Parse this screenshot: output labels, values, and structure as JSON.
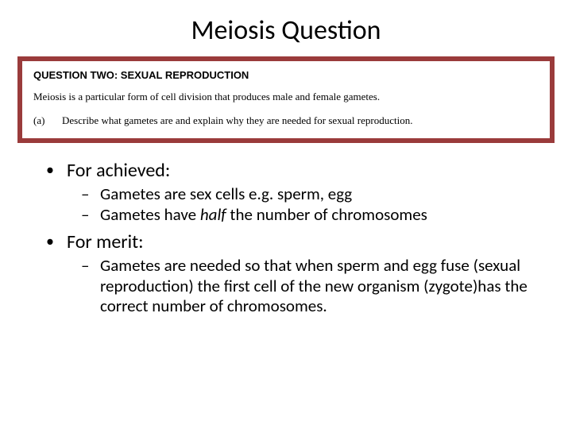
{
  "title": "Meiosis Question",
  "questionBox": {
    "borderColor": "#9a3b3b",
    "heading": "QUESTION TWO:  SEXUAL REPRODUCTION",
    "intro": "Meiosis is a particular form of cell division that produces male and female gametes.",
    "partLabel": "(a)",
    "partText": "Describe what gametes are and explain why they are needed for sexual reproduction."
  },
  "bullets": {
    "achieved": {
      "label": "For achieved:",
      "item1": "Gametes are sex cells e.g. sperm, egg",
      "item2_pre": "Gametes have ",
      "item2_em": "half",
      "item2_post": " the number of chromosomes"
    },
    "merit": {
      "label": "For merit:",
      "item1": "Gametes are needed so that when sperm and egg fuse (sexual reproduction) the first cell of the new organism (zygote)has the correct number of chromosomes."
    }
  }
}
